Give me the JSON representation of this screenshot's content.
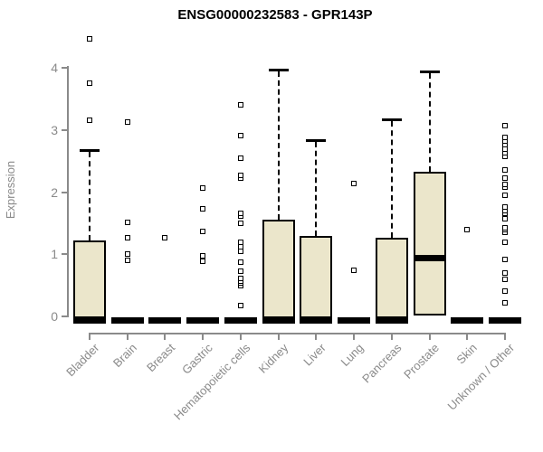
{
  "title": "ENSG00000232583 - GPR143P",
  "colors": {
    "box_fill": "#ebe6cb",
    "box_border": "#000000",
    "axis": "#8a8a8a",
    "tick_label": "#8a8a8a",
    "title_text": "#000000"
  },
  "chart_data": {
    "type": "boxplot",
    "title": "ENSG00000232583 - GPR143P",
    "xlabel": "",
    "ylabel": "Expression",
    "ylim": [
      0,
      4.6
    ],
    "yticks": [
      0,
      1,
      2,
      3,
      4
    ],
    "grid": "off",
    "legend": "none",
    "categories": [
      "Bladder",
      "Brain",
      "Breast",
      "Gastric",
      "Hematopoietic cells",
      "Kidney",
      "Liver",
      "Lung",
      "Pancreas",
      "Prostate",
      "Skin",
      "Unknown / Other"
    ],
    "series": [
      {
        "name": "Bladder",
        "q1": 0,
        "median": 0,
        "q3": 1.22,
        "whisker_low": 0,
        "whisker_high": 2.67,
        "outliers": [
          3.16,
          3.75,
          4.46
        ]
      },
      {
        "name": "Brain",
        "q1": 0,
        "median": 0,
        "q3": 0,
        "whisker_low": 0,
        "whisker_high": 0,
        "outliers": [
          0.9,
          1.0,
          1.27,
          1.51,
          3.13
        ]
      },
      {
        "name": "Breast",
        "q1": 0,
        "median": 0,
        "q3": 0,
        "whisker_low": 0,
        "whisker_high": 0,
        "outliers": [
          1.27
        ]
      },
      {
        "name": "Gastric",
        "q1": 0,
        "median": 0,
        "q3": 0,
        "whisker_low": 0,
        "whisker_high": 0,
        "outliers": [
          0.89,
          0.97,
          1.37,
          1.73,
          2.07
        ]
      },
      {
        "name": "Hematopoietic cells",
        "q1": 0,
        "median": 0,
        "q3": 0,
        "whisker_low": 0,
        "whisker_high": 0,
        "outliers": [
          0.17,
          0.49,
          0.54,
          0.57,
          0.61,
          0.73,
          0.87,
          1.05,
          1.12,
          1.19,
          1.5,
          1.61,
          1.66,
          2.22,
          2.27,
          2.55,
          2.91,
          3.4
        ]
      },
      {
        "name": "Kidney",
        "q1": 0,
        "median": 0,
        "q3": 1.55,
        "whisker_low": 0,
        "whisker_high": 3.97,
        "outliers": []
      },
      {
        "name": "Liver",
        "q1": 0,
        "median": 0,
        "q3": 1.3,
        "whisker_low": 0,
        "whisker_high": 2.84,
        "outliers": []
      },
      {
        "name": "Lung",
        "q1": 0,
        "median": 0,
        "q3": 0,
        "whisker_low": 0,
        "whisker_high": 0,
        "outliers": [
          0.74,
          2.14
        ]
      },
      {
        "name": "Pancreas",
        "q1": 0,
        "median": 0,
        "q3": 1.27,
        "whisker_low": 0,
        "whisker_high": 3.17,
        "outliers": []
      },
      {
        "name": "Prostate",
        "q1": 0.05,
        "median": 0.95,
        "q3": 2.33,
        "whisker_low": 0.05,
        "whisker_high": 3.94,
        "outliers": []
      },
      {
        "name": "Skin",
        "q1": 0,
        "median": 0,
        "q3": 0,
        "whisker_low": 0,
        "whisker_high": 0,
        "outliers": [
          1.4
        ]
      },
      {
        "name": "Unknown / Other",
        "q1": 0,
        "median": 0,
        "q3": 0,
        "whisker_low": 0,
        "whisker_high": 0,
        "outliers": [
          0.22,
          0.41,
          0.6,
          0.7,
          0.92,
          1.19,
          1.35,
          1.4,
          1.43,
          1.57,
          1.66,
          1.7,
          1.76,
          1.95,
          2.08,
          2.12,
          2.23,
          2.36,
          2.57,
          2.63,
          2.69,
          2.76,
          2.82,
          2.88,
          3.07
        ]
      }
    ]
  }
}
